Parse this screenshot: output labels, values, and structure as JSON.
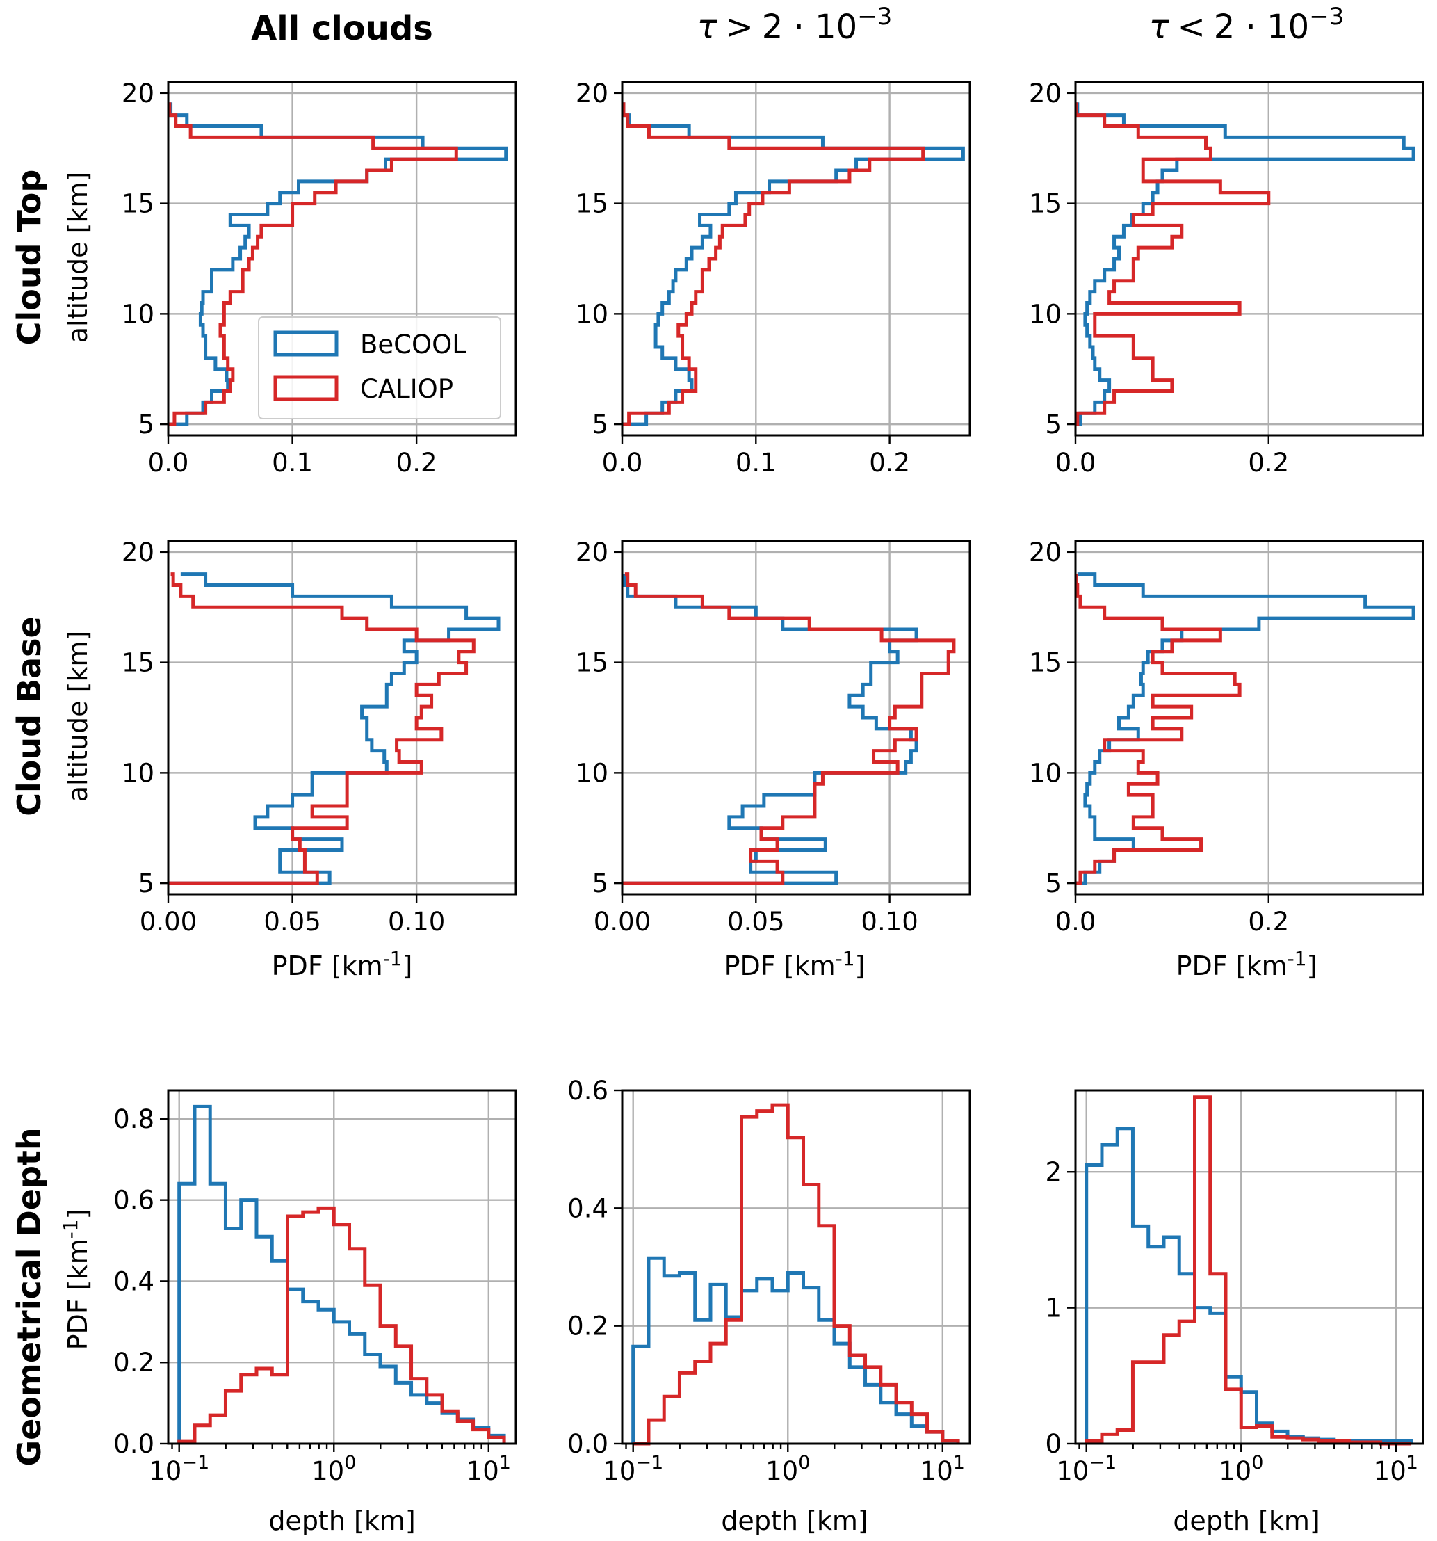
{
  "colors": {
    "becool": "#1f77b4",
    "caliop": "#d62728"
  },
  "column_titles": [
    {
      "text": "All clouds"
    },
    {
      "tau": "τ",
      "op": ">",
      "rest": "2 · 10",
      "exp": "−3"
    },
    {
      "tau": "τ",
      "op": "<",
      "rest": "2 · 10",
      "exp": "−3"
    }
  ],
  "row_titles": [
    "Cloud Top",
    "Cloud Base",
    "Geometrical Depth"
  ],
  "labels": {
    "altitude": "altitude [km]",
    "pdf": "PDF [km",
    "pdf_sup": "-1",
    "pdf_close": "]",
    "depth": "depth [km]"
  },
  "legend": [
    "BeCOOL",
    "CALIOP"
  ],
  "chart_data": [
    {
      "id": "top-all",
      "type": "step-histogram",
      "orientation": "horizontal",
      "title": "All clouds",
      "row": "Cloud Top",
      "ylabel": "altitude [km]",
      "xlim": [
        0,
        0.28
      ],
      "ylim": [
        4.5,
        20.5
      ],
      "xticks": [
        0,
        0.1,
        0.2
      ],
      "xticklabels": [
        "0.0",
        "0.1",
        "0.2"
      ],
      "yticks": [
        5,
        10,
        15,
        20
      ],
      "yticklabels": [
        "5",
        "10",
        "15",
        "20"
      ],
      "bin_edges": [
        5,
        5.5,
        6,
        6.5,
        7,
        7.5,
        8,
        8.5,
        9,
        9.5,
        10,
        10.5,
        11,
        11.5,
        12,
        12.5,
        13,
        13.5,
        14,
        14.5,
        15,
        15.5,
        16,
        16.5,
        17,
        17.5,
        18,
        18.5,
        19,
        19.5
      ],
      "series": [
        {
          "name": "BeCOOL",
          "values": [
            0.015,
            0.028,
            0.035,
            0.048,
            0.047,
            0.038,
            0.03,
            0.03,
            0.028,
            0.026,
            0.027,
            0.028,
            0.035,
            0.035,
            0.052,
            0.058,
            0.062,
            0.065,
            0.05,
            0.08,
            0.09,
            0.105,
            0.16,
            0.175,
            0.272,
            0.205,
            0.075,
            0.015,
            0.002
          ]
        },
        {
          "name": "CALIOP",
          "values": [
            0.005,
            0.03,
            0.045,
            0.05,
            0.052,
            0.048,
            0.045,
            0.045,
            0.042,
            0.045,
            0.045,
            0.05,
            0.06,
            0.06,
            0.065,
            0.068,
            0.072,
            0.075,
            0.1,
            0.1,
            0.118,
            0.135,
            0.16,
            0.18,
            0.232,
            0.165,
            0.018,
            0.006,
            0.001
          ]
        }
      ]
    },
    {
      "id": "top-gt",
      "type": "step-histogram",
      "orientation": "horizontal",
      "title": "τ > 2·10^-3",
      "row": "Cloud Top",
      "xlim": [
        0,
        0.26
      ],
      "ylim": [
        4.5,
        20.5
      ],
      "xticks": [
        0,
        0.1,
        0.2
      ],
      "xticklabels": [
        "0.0",
        "0.1",
        "0.2"
      ],
      "yticks": [
        5,
        10,
        15,
        20
      ],
      "yticklabels": [
        "5",
        "10",
        "15",
        "20"
      ],
      "bin_edges": [
        5,
        5.5,
        6,
        6.5,
        7,
        7.5,
        8,
        8.5,
        9,
        9.5,
        10,
        10.5,
        11,
        11.5,
        12,
        12.5,
        13,
        13.5,
        14,
        14.5,
        15,
        15.5,
        16,
        16.5,
        17,
        17.5,
        18,
        18.5,
        19,
        19.5
      ],
      "series": [
        {
          "name": "BeCOOL",
          "values": [
            0.018,
            0.03,
            0.04,
            0.052,
            0.05,
            0.04,
            0.03,
            0.025,
            0.025,
            0.027,
            0.03,
            0.035,
            0.038,
            0.04,
            0.048,
            0.052,
            0.06,
            0.066,
            0.058,
            0.08,
            0.085,
            0.11,
            0.16,
            0.175,
            0.255,
            0.15,
            0.05,
            0.005,
            0.001
          ]
        },
        {
          "name": "CALIOP",
          "values": [
            0.005,
            0.035,
            0.045,
            0.055,
            0.055,
            0.05,
            0.045,
            0.045,
            0.042,
            0.048,
            0.052,
            0.055,
            0.06,
            0.06,
            0.065,
            0.07,
            0.073,
            0.075,
            0.092,
            0.095,
            0.105,
            0.125,
            0.17,
            0.185,
            0.225,
            0.08,
            0.02,
            0.004,
            0.001
          ]
        }
      ]
    },
    {
      "id": "top-lt",
      "type": "step-histogram",
      "orientation": "horizontal",
      "title": "τ < 2·10^-3",
      "row": "Cloud Top",
      "xlim": [
        0,
        0.36
      ],
      "ylim": [
        4.5,
        20.5
      ],
      "xticks": [
        0,
        0.2
      ],
      "xticklabels": [
        "0.0",
        "0.2"
      ],
      "yticks": [
        5,
        10,
        15,
        20
      ],
      "yticklabels": [
        "5",
        "10",
        "15",
        "20"
      ],
      "bin_edges": [
        5,
        5.5,
        6,
        6.5,
        7,
        7.5,
        8,
        8.5,
        9,
        9.5,
        10,
        10.5,
        11,
        11.5,
        12,
        12.5,
        13,
        13.5,
        14,
        14.5,
        15,
        15.5,
        16,
        16.5,
        17,
        17.5,
        18,
        18.5,
        19,
        19.5
      ],
      "series": [
        {
          "name": "BeCOOL",
          "values": [
            0.005,
            0.02,
            0.03,
            0.035,
            0.025,
            0.02,
            0.018,
            0.015,
            0.012,
            0.01,
            0.012,
            0.015,
            0.02,
            0.03,
            0.04,
            0.045,
            0.04,
            0.05,
            0.058,
            0.07,
            0.08,
            0.085,
            0.09,
            0.105,
            0.35,
            0.34,
            0.155,
            0.05,
            0.002
          ]
        },
        {
          "name": "CALIOP",
          "values": [
            0.002,
            0.03,
            0.04,
            0.1,
            0.08,
            0.08,
            0.06,
            0.06,
            0.02,
            0.02,
            0.17,
            0.035,
            0.04,
            0.06,
            0.06,
            0.065,
            0.1,
            0.11,
            0.06,
            0.08,
            0.2,
            0.15,
            0.07,
            0.07,
            0.14,
            0.135,
            0.065,
            0.03,
            0.001
          ]
        }
      ]
    },
    {
      "id": "base-all",
      "type": "step-histogram",
      "orientation": "horizontal",
      "title": "All clouds",
      "row": "Cloud Base",
      "ylabel": "altitude [km]",
      "xlabel": "PDF [km^-1]",
      "xlim": [
        0,
        0.14
      ],
      "ylim": [
        4.5,
        20.5
      ],
      "xticks": [
        0,
        0.05,
        0.1
      ],
      "xticklabels": [
        "0.00",
        "0.05",
        "0.10"
      ],
      "yticks": [
        5,
        10,
        15,
        20
      ],
      "yticklabels": [
        "5",
        "10",
        "15",
        "20"
      ],
      "bin_edges": [
        5,
        5.5,
        6,
        6.5,
        7,
        7.5,
        8,
        8.5,
        9,
        9.5,
        10,
        10.5,
        11,
        11.5,
        12,
        12.5,
        13,
        13.5,
        14,
        14.5,
        15,
        15.5,
        16,
        16.5,
        17,
        17.5,
        18,
        18.5,
        19
      ],
      "series": [
        {
          "name": "BeCOOL",
          "values": [
            0.065,
            0.045,
            0.045,
            0.07,
            0.05,
            0.035,
            0.04,
            0.05,
            0.058,
            0.058,
            0.088,
            0.087,
            0.082,
            0.08,
            0.08,
            0.078,
            0.088,
            0.088,
            0.09,
            0.095,
            0.1,
            0.095,
            0.113,
            0.133,
            0.12,
            0.09,
            0.05,
            0.015,
            0.005
          ]
        },
        {
          "name": "CALIOP",
          "values": [
            0.06,
            0.055,
            0.055,
            0.053,
            0.05,
            0.072,
            0.058,
            0.072,
            0.072,
            0.072,
            0.102,
            0.093,
            0.092,
            0.11,
            0.1,
            0.102,
            0.106,
            0.1,
            0.109,
            0.12,
            0.117,
            0.123,
            0.1,
            0.08,
            0.07,
            0.01,
            0.005,
            0.002,
            0.001
          ]
        }
      ]
    },
    {
      "id": "base-gt",
      "type": "step-histogram",
      "orientation": "horizontal",
      "title": "τ > 2·10^-3",
      "row": "Cloud Base",
      "xlabel": "PDF [km^-1]",
      "xlim": [
        0,
        0.13
      ],
      "ylim": [
        4.5,
        20.5
      ],
      "xticks": [
        0,
        0.05,
        0.1
      ],
      "xticklabels": [
        "0.00",
        "0.05",
        "0.10"
      ],
      "yticks": [
        5,
        10,
        15,
        20
      ],
      "yticklabels": [
        "5",
        "10",
        "15",
        "20"
      ],
      "bin_edges": [
        5,
        5.5,
        6,
        6.5,
        7,
        7.5,
        8,
        8.5,
        9,
        9.5,
        10,
        10.5,
        11,
        11.5,
        12,
        12.5,
        13,
        13.5,
        14,
        14.5,
        15,
        15.5,
        16,
        16.5,
        17,
        17.5,
        18,
        18.5,
        19
      ],
      "series": [
        {
          "name": "BeCOOL",
          "values": [
            0.08,
            0.048,
            0.05,
            0.076,
            0.052,
            0.04,
            0.045,
            0.053,
            0.072,
            0.072,
            0.106,
            0.108,
            0.11,
            0.108,
            0.095,
            0.09,
            0.085,
            0.09,
            0.093,
            0.093,
            0.103,
            0.1,
            0.11,
            0.06,
            0.05,
            0.02,
            0.002,
            0.001,
            0.001
          ]
        },
        {
          "name": "CALIOP",
          "values": [
            0.06,
            0.058,
            0.048,
            0.058,
            0.052,
            0.06,
            0.072,
            0.072,
            0.072,
            0.075,
            0.103,
            0.094,
            0.102,
            0.11,
            0.1,
            0.102,
            0.112,
            0.112,
            0.112,
            0.122,
            0.122,
            0.124,
            0.097,
            0.07,
            0.04,
            0.03,
            0.005,
            0.002,
            0.001
          ]
        }
      ]
    },
    {
      "id": "base-lt",
      "type": "step-histogram",
      "orientation": "horizontal",
      "title": "τ < 2·10^-3",
      "row": "Cloud Base",
      "xlabel": "PDF [km^-1]",
      "xlim": [
        0,
        0.36
      ],
      "ylim": [
        4.5,
        20.5
      ],
      "xticks": [
        0,
        0.2
      ],
      "xticklabels": [
        "0.0",
        "0.2"
      ],
      "yticks": [
        5,
        10,
        15,
        20
      ],
      "yticklabels": [
        "5",
        "10",
        "15",
        "20"
      ],
      "bin_edges": [
        5,
        5.5,
        6,
        6.5,
        7,
        7.5,
        8,
        8.5,
        9,
        9.5,
        10,
        10.5,
        11,
        11.5,
        12,
        12.5,
        13,
        13.5,
        14,
        14.5,
        15,
        15.5,
        16,
        16.5,
        17,
        17.5,
        18,
        18.5,
        19
      ],
      "series": [
        {
          "name": "BeCOOL",
          "values": [
            0.01,
            0.025,
            0.04,
            0.06,
            0.02,
            0.02,
            0.015,
            0.01,
            0.012,
            0.015,
            0.02,
            0.025,
            0.035,
            0.065,
            0.045,
            0.055,
            0.06,
            0.07,
            0.068,
            0.07,
            0.075,
            0.09,
            0.11,
            0.19,
            0.35,
            0.3,
            0.07,
            0.02,
            0.002
          ]
        },
        {
          "name": "CALIOP",
          "values": [
            0.005,
            0.02,
            0.04,
            0.13,
            0.09,
            0.06,
            0.08,
            0.08,
            0.055,
            0.085,
            0.065,
            0.07,
            0.03,
            0.11,
            0.08,
            0.12,
            0.08,
            0.17,
            0.165,
            0.09,
            0.08,
            0.1,
            0.15,
            0.09,
            0.03,
            0.005,
            0.002,
            0.001,
            0.001
          ]
        }
      ]
    },
    {
      "id": "depth-all",
      "type": "step-histogram",
      "orientation": "vertical",
      "xscale": "log",
      "title": "All clouds",
      "row": "Geometrical Depth",
      "ylabel": "PDF [km^-1]",
      "xlabel": "depth [km]",
      "xlim": [
        0.085,
        15
      ],
      "ylim": [
        0,
        0.87
      ],
      "yticks": [
        0,
        0.2,
        0.4,
        0.6,
        0.8
      ],
      "yticklabels": [
        "0.0",
        "0.2",
        "0.4",
        "0.6",
        "0.8"
      ],
      "xticks": [
        0.1,
        1,
        10
      ],
      "xticklabel_base": "10",
      "xticklabel_exps": [
        "−1",
        "0",
        "1"
      ],
      "bin_edges": [
        0.1,
        0.1259,
        0.1585,
        0.1995,
        0.2512,
        0.3162,
        0.3981,
        0.5012,
        0.631,
        0.7943,
        1,
        1.2589,
        1.5849,
        1.9953,
        2.5119,
        3.1623,
        3.9811,
        5.0119,
        6.3096,
        7.9433,
        10,
        12.589
      ],
      "series": [
        {
          "name": "BeCOOL",
          "values": [
            0.64,
            0.83,
            0.64,
            0.53,
            0.6,
            0.51,
            0.45,
            0.38,
            0.35,
            0.33,
            0.3,
            0.27,
            0.22,
            0.19,
            0.15,
            0.12,
            0.1,
            0.075,
            0.06,
            0.04,
            0.02
          ]
        },
        {
          "name": "CALIOP",
          "values": [
            0.005,
            0.045,
            0.07,
            0.13,
            0.17,
            0.185,
            0.17,
            0.56,
            0.57,
            0.58,
            0.54,
            0.48,
            0.39,
            0.29,
            0.24,
            0.16,
            0.12,
            0.08,
            0.055,
            0.035,
            0.015
          ]
        }
      ]
    },
    {
      "id": "depth-gt",
      "type": "step-histogram",
      "orientation": "vertical",
      "xscale": "log",
      "title": "τ > 2·10^-3",
      "row": "Geometrical Depth",
      "xlabel": "depth [km]",
      "xlim": [
        0.085,
        15
      ],
      "ylim": [
        0,
        0.6
      ],
      "yticks": [
        0,
        0.2,
        0.4,
        0.6
      ],
      "yticklabels": [
        "0.0",
        "0.2",
        "0.4",
        "0.6"
      ],
      "xticks": [
        0.1,
        1,
        10
      ],
      "xticklabel_base": "10",
      "xticklabel_exps": [
        "−1",
        "0",
        "1"
      ],
      "bin_edges": [
        0.1,
        0.1259,
        0.1585,
        0.1995,
        0.2512,
        0.3162,
        0.3981,
        0.5012,
        0.631,
        0.7943,
        1,
        1.2589,
        1.5849,
        1.9953,
        2.5119,
        3.1623,
        3.9811,
        5.0119,
        6.3096,
        7.9433,
        10,
        12.589
      ],
      "series": [
        {
          "name": "BeCOOL",
          "values": [
            0.165,
            0.315,
            0.285,
            0.29,
            0.21,
            0.27,
            0.215,
            0.26,
            0.28,
            0.26,
            0.29,
            0.265,
            0.21,
            0.17,
            0.13,
            0.1,
            0.07,
            0.05,
            0.03,
            0.02,
            0.005
          ]
        },
        {
          "name": "CALIOP",
          "values": [
            0.0,
            0.04,
            0.08,
            0.12,
            0.14,
            0.17,
            0.21,
            0.555,
            0.565,
            0.575,
            0.52,
            0.44,
            0.37,
            0.2,
            0.15,
            0.13,
            0.1,
            0.07,
            0.05,
            0.02,
            0.005
          ]
        }
      ]
    },
    {
      "id": "depth-lt",
      "type": "step-histogram",
      "orientation": "vertical",
      "xscale": "log",
      "title": "τ < 2·10^-3",
      "row": "Geometrical Depth",
      "xlabel": "depth [km]",
      "xlim": [
        0.085,
        15
      ],
      "ylim": [
        0,
        2.6
      ],
      "yticks": [
        0,
        1,
        2
      ],
      "yticklabels": [
        "0",
        "1",
        "2"
      ],
      "xticks": [
        0.1,
        1,
        10
      ],
      "xticklabel_base": "10",
      "xticklabel_exps": [
        "−1",
        "0",
        "1"
      ],
      "bin_edges": [
        0.1,
        0.1259,
        0.1585,
        0.1995,
        0.2512,
        0.3162,
        0.3981,
        0.5012,
        0.631,
        0.7943,
        1,
        1.2589,
        1.5849,
        1.9953,
        2.5119,
        3.1623,
        3.9811,
        5.0119,
        6.3096,
        7.9433,
        10,
        12.589
      ],
      "series": [
        {
          "name": "BeCOOL",
          "values": [
            2.05,
            2.2,
            2.32,
            1.6,
            1.45,
            1.52,
            1.25,
            1.0,
            0.96,
            0.49,
            0.38,
            0.15,
            0.09,
            0.05,
            0.04,
            0.03,
            0.02,
            0.02,
            0.02,
            0.02,
            0.02
          ]
        },
        {
          "name": "CALIOP",
          "values": [
            0.02,
            0.07,
            0.1,
            0.6,
            0.6,
            0.8,
            0.9,
            2.55,
            1.25,
            0.4,
            0.12,
            0.13,
            0.05,
            0.04,
            0.03,
            0.02,
            0.02,
            0.01,
            0.01,
            0.0,
            0.0
          ]
        }
      ]
    }
  ]
}
